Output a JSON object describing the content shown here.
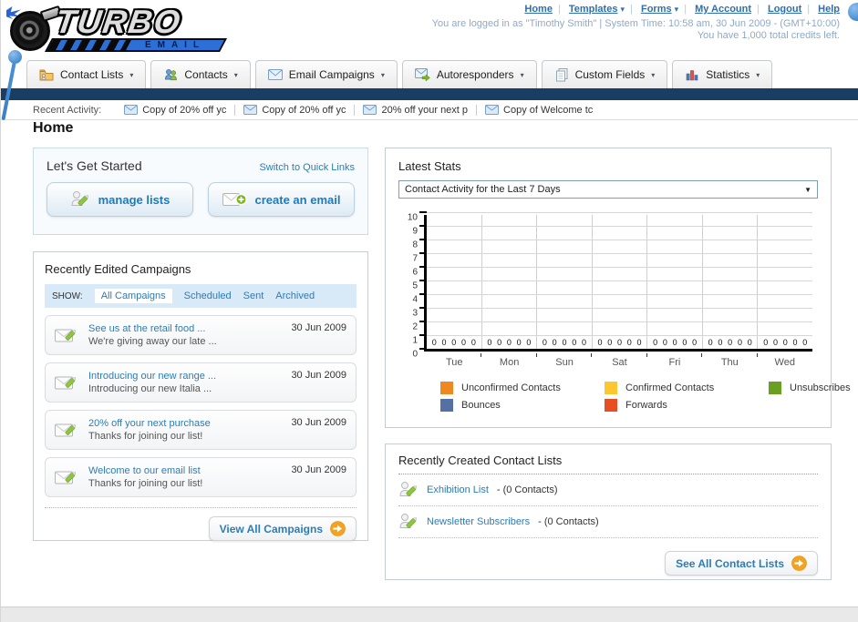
{
  "brand": {
    "name_top": "TURBO",
    "name_bottom": "EMAIL"
  },
  "header": {
    "nav": [
      {
        "label": "Home",
        "dropdown": false
      },
      {
        "label": "Templates",
        "dropdown": true
      },
      {
        "label": "Forms",
        "dropdown": true
      },
      {
        "label": "My Account",
        "dropdown": false
      },
      {
        "label": "Logout",
        "dropdown": false
      },
      {
        "label": "Help",
        "dropdown": false
      }
    ],
    "login_line": "You are logged in as \"Timothy Smith\" | System Time: 10:58 am, 30 Jun 2009 - (GMT+10:00)",
    "credits_line": "You have 1,000 total credits left."
  },
  "tabs": [
    {
      "label": "Contact Lists",
      "icon": "contact-lists-icon"
    },
    {
      "label": "Contacts",
      "icon": "contacts-icon"
    },
    {
      "label": "Email Campaigns",
      "icon": "email-campaigns-icon"
    },
    {
      "label": "Autoresponders",
      "icon": "autoresponders-icon"
    },
    {
      "label": "Custom Fields",
      "icon": "custom-fields-icon"
    },
    {
      "label": "Statistics",
      "icon": "statistics-icon"
    }
  ],
  "recent_activity": {
    "label": "Recent Activity:",
    "items": [
      "Copy of 20% off yc",
      "Copy of 20% off yc",
      "20% off your next p",
      "Copy of Welcome tc"
    ]
  },
  "page_title": "Home",
  "get_started": {
    "title": "Let's Get Started",
    "switch_link": "Switch to Quick Links",
    "manage_lists_label": "manage lists",
    "create_email_label": "create an email"
  },
  "campaigns": {
    "title": "Recently Edited Campaigns",
    "show_label": "SHOW:",
    "filters": [
      "All Campaigns",
      "Scheduled",
      "Sent",
      "Archived"
    ],
    "active_filter": "All Campaigns",
    "items": [
      {
        "title": "See us at the retail food ...",
        "subtitle": "We're giving away our late ...",
        "date": "30 Jun 2009"
      },
      {
        "title": "Introducing our new range ...",
        "subtitle": "Introducing our new Italia ...",
        "date": "30 Jun 2009"
      },
      {
        "title": "20% off your next purchase",
        "subtitle": "Thanks for joining our list!",
        "date": "30 Jun 2009"
      },
      {
        "title": "Welcome to our email list",
        "subtitle": "Thanks for joining our list!",
        "date": "30 Jun 2009"
      }
    ],
    "view_all_label": "View All Campaigns"
  },
  "stats": {
    "title": "Latest Stats",
    "dropdown_value": "Contact Activity for the Last 7 Days"
  },
  "chart_data": {
    "type": "bar",
    "title": "Contact Activity for the Last 7 Days",
    "categories": [
      "Tue",
      "Mon",
      "Sun",
      "Sat",
      "Fri",
      "Thu",
      "Wed"
    ],
    "series": [
      {
        "name": "Unconfirmed Contacts",
        "color": "#f08821",
        "values": [
          0,
          0,
          0,
          0,
          0,
          0,
          0
        ]
      },
      {
        "name": "Confirmed Contacts",
        "color": "#fdc82f",
        "values": [
          0,
          0,
          0,
          0,
          0,
          0,
          0
        ]
      },
      {
        "name": "Unsubscribes",
        "color": "#69a022",
        "values": [
          0,
          0,
          0,
          0,
          0,
          0,
          0
        ]
      },
      {
        "name": "Bounces",
        "color": "#5470a4",
        "values": [
          0,
          0,
          0,
          0,
          0,
          0,
          0
        ]
      },
      {
        "name": "Forwards",
        "color": "#e74e24",
        "values": [
          0,
          0,
          0,
          0,
          0,
          0,
          0
        ]
      }
    ],
    "xlabel": "",
    "ylabel": "",
    "ylim": [
      0,
      10
    ],
    "ytick_step": 1,
    "grid": true,
    "legend_position": "bottom",
    "data_labels_shown": true
  },
  "contact_lists": {
    "title": "Recently Created Contact Lists",
    "items": [
      {
        "name": "Exhibition List",
        "count": "- (0 Contacts)"
      },
      {
        "name": "Newsletter Subscribers",
        "count": "- (0 Contacts)"
      }
    ],
    "see_all_label": "See All Contact Lists"
  }
}
